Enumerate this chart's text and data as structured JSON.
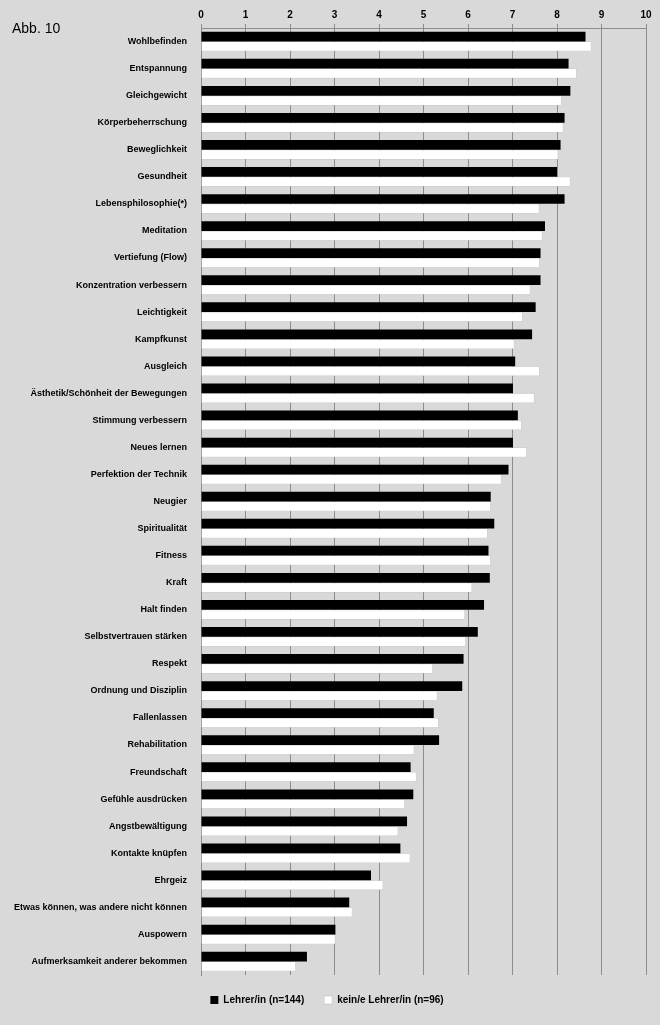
{
  "chart_data": {
    "type": "bar",
    "orientation": "horizontal",
    "annotations": [
      "Abb. 10"
    ],
    "categories": [
      "Wohlbefinden",
      "Entspannung",
      "Gleichgewicht",
      "Körperbeherrschung",
      "Beweglichkeit",
      "Gesundheit",
      "Lebensphilosophie(*)",
      "Meditation",
      "Vertiefung (Flow)",
      "Konzentration verbessern",
      "Leichtigkeit",
      "Kampfkunst",
      "Ausgleich",
      "Ästhetik/Schönheit der Bewegungen",
      "Stimmung verbessern",
      "Neues lernen",
      "Perfektion der Technik",
      "Neugier",
      "Spiritualität",
      "Fitness",
      "Kraft",
      "Halt finden",
      "Selbstvertrauen stärken",
      "Respekt",
      "Ordnung und Disziplin",
      "Fallenlassen",
      "Rehabilitation",
      "Freundschaft",
      "Gefühle ausdrücken",
      "Angstbewältigung",
      "Kontakte knüpfen",
      "Ehrgeiz",
      "Etwas können, was andere nicht können",
      "Auspowern",
      "Aufmerksamkeit anderer bekommen"
    ],
    "series": [
      {
        "name": "Lehrer/in (n=144)",
        "color": "#000000",
        "values": [
          8.64,
          8.26,
          8.3,
          8.17,
          8.08,
          8.0,
          8.17,
          7.73,
          7.63,
          7.63,
          7.52,
          7.44,
          7.06,
          7.01,
          7.12,
          7.01,
          6.91,
          6.51,
          6.59,
          6.46,
          6.49,
          6.36,
          6.22,
          5.9,
          5.87,
          5.23,
          5.35,
          4.71,
          4.77,
          4.63,
          4.48,
          3.82,
          3.33,
          3.02,
          2.38
        ]
      },
      {
        "name": "kein/e Lehrer/in (n=96)",
        "color": "#ffffff",
        "values": [
          8.77,
          8.44,
          8.1,
          8.14,
          8.03,
          8.3,
          7.6,
          7.67,
          7.61,
          7.4,
          7.23,
          7.04,
          7.61,
          7.49,
          7.2,
          7.32,
          6.75,
          6.51,
          6.44,
          6.51,
          6.09,
          5.93,
          5.95,
          5.21,
          5.31,
          5.34,
          4.79,
          4.84,
          4.58,
          4.43,
          4.7,
          4.09,
          3.4,
          3.02,
          2.13
        ]
      }
    ],
    "xlim": [
      0,
      10
    ],
    "xticks": [
      0,
      1,
      2,
      3,
      4,
      5,
      6,
      7,
      8,
      9,
      10
    ],
    "grid": "x",
    "legend": "bottom"
  }
}
